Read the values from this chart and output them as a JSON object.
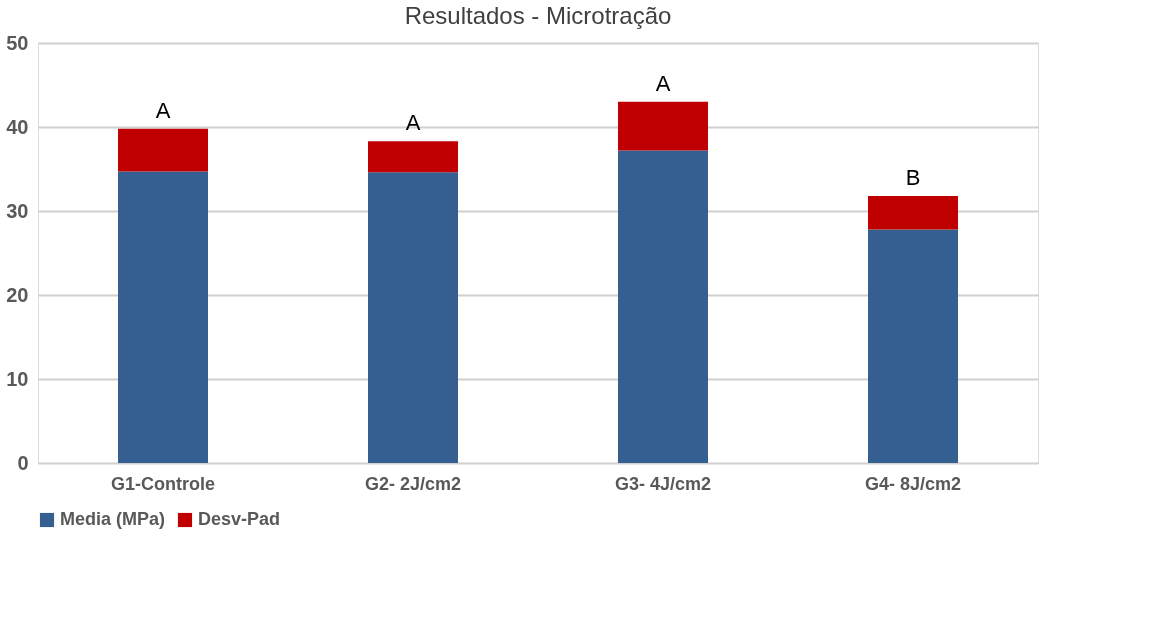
{
  "chart_data": {
    "type": "bar",
    "title": "Resultados - Microtração",
    "categories": [
      "G1-Controle",
      "G2- 2J/cm2",
      "G3- 4J/cm2",
      "G4- 8J/cm2"
    ],
    "stacked": true,
    "series": [
      {
        "name": "Media (MPa)",
        "color": "#365f91",
        "values": [
          34.7,
          34.6,
          37.2,
          27.8
        ]
      },
      {
        "name": "Desv-Pad",
        "color": "#c00000",
        "values": [
          5.1,
          3.7,
          5.8,
          4.0
        ]
      }
    ],
    "ylim": [
      0,
      50
    ],
    "yticks": [
      0,
      10,
      20,
      30,
      40,
      50
    ],
    "grid": "y",
    "legend": "bottom",
    "annotations": [
      {
        "text": "A",
        "x": "G1-Controle",
        "y": 39.8
      },
      {
        "text": "A",
        "x": "G2- 2J/cm2",
        "y": 38.3
      },
      {
        "text": "A",
        "x": "G3- 4J/cm2",
        "y": 43.0
      },
      {
        "text": "B",
        "x": "G4- 8J/cm2",
        "y": 31.8
      }
    ]
  }
}
